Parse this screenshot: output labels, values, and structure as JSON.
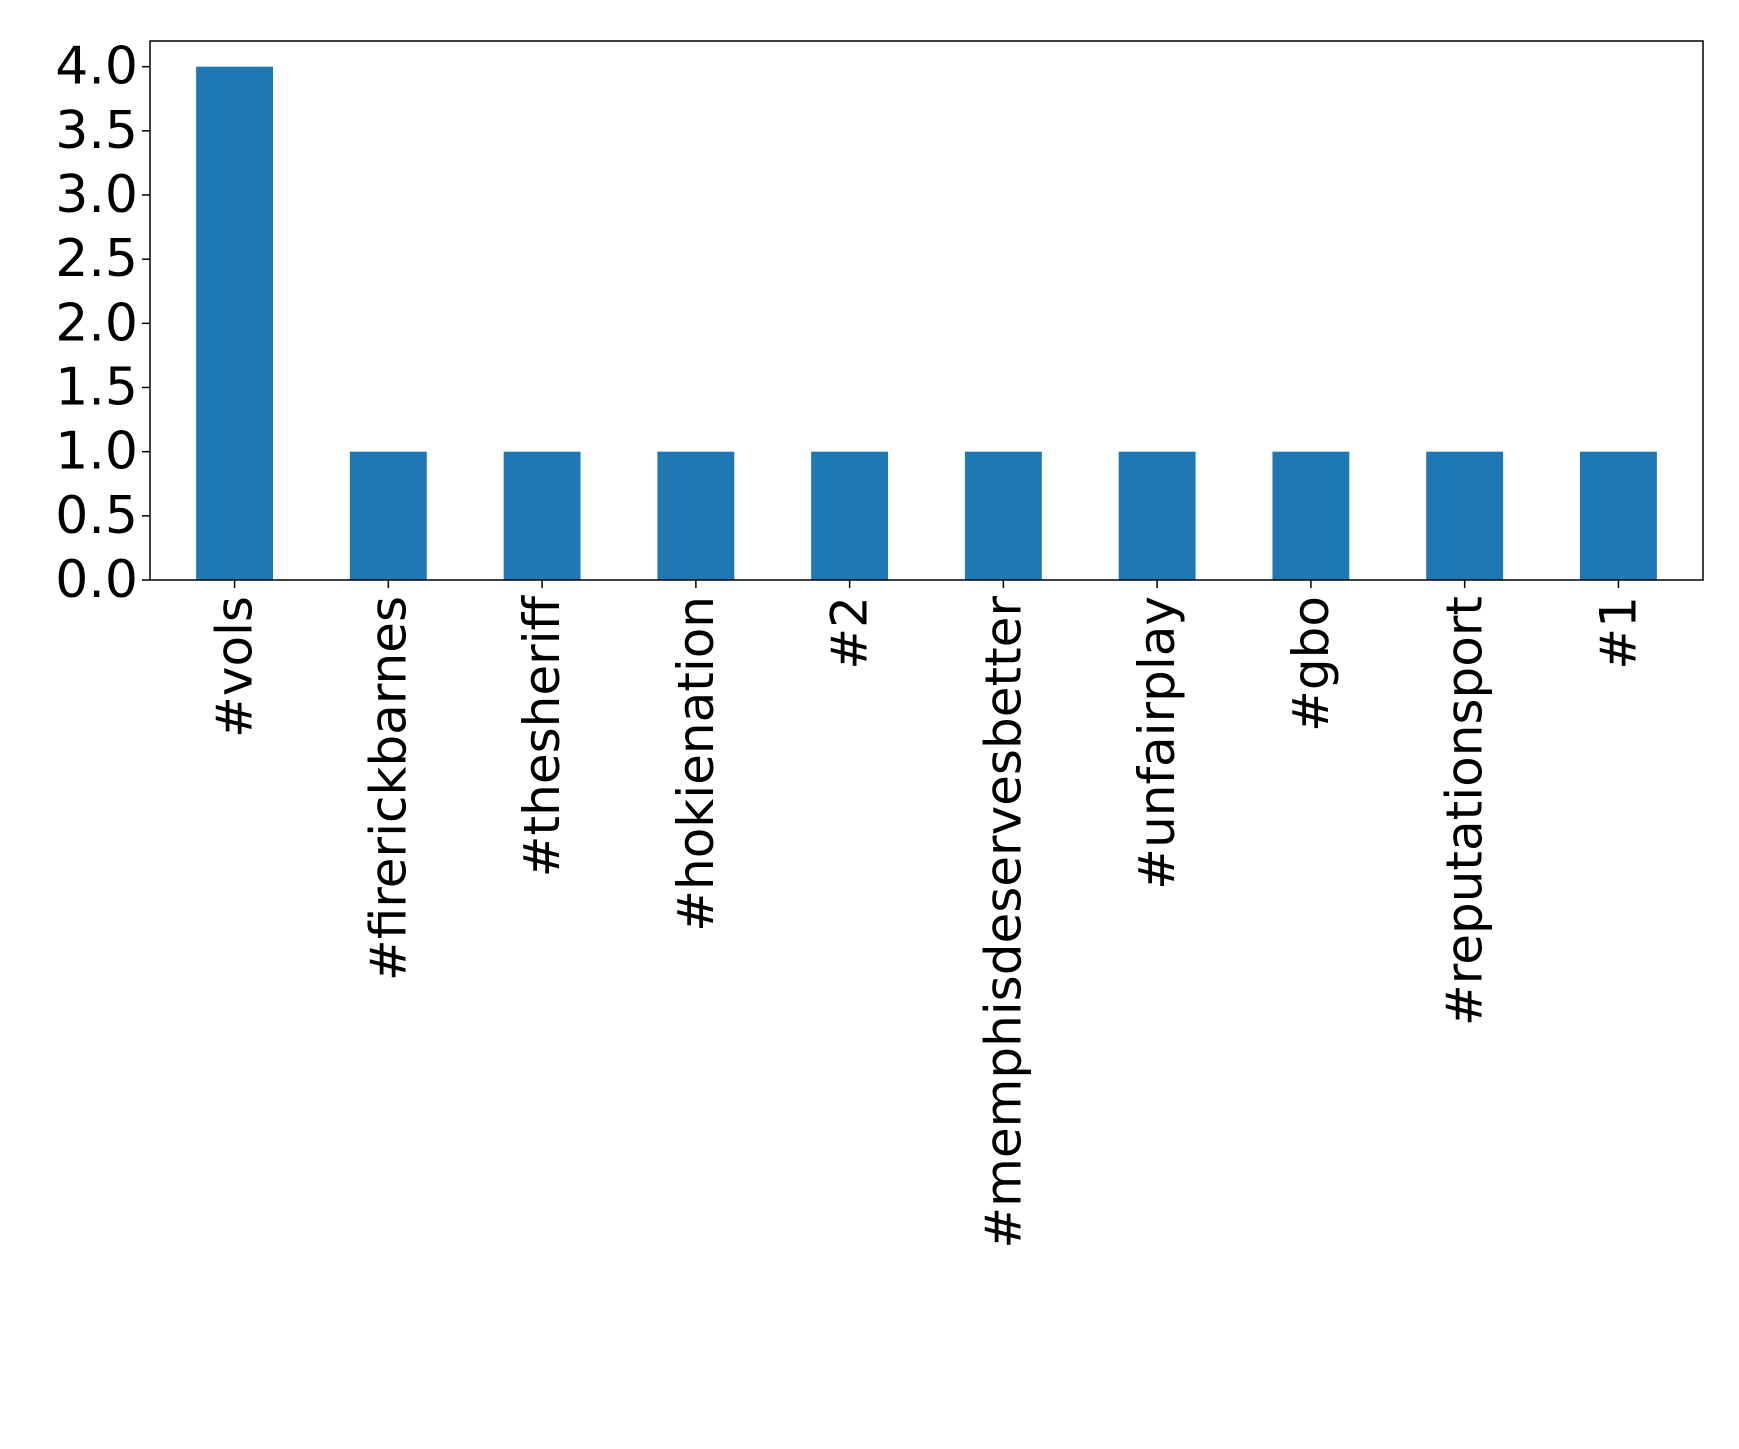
{
  "chart_data": {
    "type": "bar",
    "title": "",
    "xlabel": "",
    "ylabel": "",
    "categories": [
      "#vols",
      "#firerickbarnes",
      "#thesheriff",
      "#hokienation",
      "#2",
      "#memphisdeservesbetter",
      "#unfairplay",
      "#gbo",
      "#reputationsport",
      "#1"
    ],
    "values": [
      4,
      1,
      1,
      1,
      1,
      1,
      1,
      1,
      1,
      1
    ],
    "ylim": [
      0,
      4.2
    ],
    "yticks": [
      "0.0",
      "0.5",
      "1.0",
      "1.5",
      "2.0",
      "2.5",
      "3.0",
      "3.5",
      "4.0"
    ],
    "grid": false,
    "legend": "none",
    "colors": {
      "bar": "#1f77b4",
      "axes": "#000000"
    }
  }
}
